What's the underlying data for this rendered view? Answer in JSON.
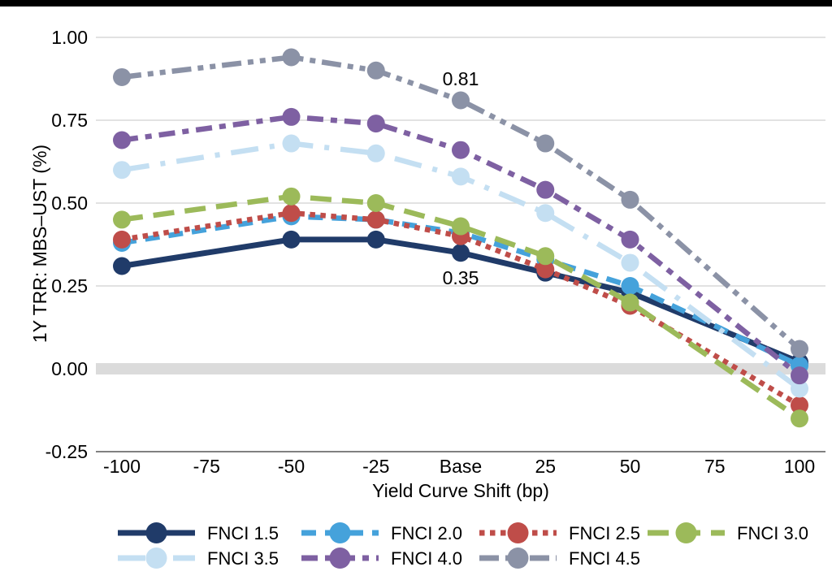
{
  "chart_data": {
    "type": "line",
    "title": "",
    "xlabel": "Yield Curve Shift (bp)",
    "ylabel": "1Y TRR: MBS–UST (%)",
    "x_tick_labels": [
      "-100",
      "-75",
      "-50",
      "-25",
      "Base",
      "25",
      "50",
      "75",
      "100"
    ],
    "y_tick_labels": [
      "1.00",
      "0.75",
      "0.50",
      "0.25",
      "0.00",
      "-0.25"
    ],
    "y_ticks": [
      1.0,
      0.75,
      0.5,
      0.25,
      0.0,
      -0.25
    ],
    "ylim": [
      -0.25,
      1.05
    ],
    "grid": true,
    "zero_band": true,
    "series_x": [
      "-100",
      "-50",
      "-25",
      "Base",
      "25",
      "50",
      "100"
    ],
    "series": [
      {
        "name": "FNCI 1.5",
        "color": "#203B69",
        "dash": "solid",
        "values": [
          0.31,
          0.39,
          0.39,
          0.35,
          0.29,
          0.23,
          0.02
        ]
      },
      {
        "name": "FNCI 2.0",
        "color": "#45A2DB",
        "dash": "18 11",
        "values": [
          0.38,
          0.46,
          0.45,
          0.41,
          0.33,
          0.25,
          0.01
        ]
      },
      {
        "name": "FNCI 2.5",
        "color": "#BF4D49",
        "dash": "6.5 6.5",
        "values": [
          0.39,
          0.47,
          0.45,
          0.4,
          0.3,
          0.19,
          -0.11
        ]
      },
      {
        "name": "FNCI 3.0",
        "color": "#9CBA5A",
        "dash": "26 13",
        "values": [
          0.45,
          0.52,
          0.5,
          0.43,
          0.34,
          0.2,
          -0.15
        ]
      },
      {
        "name": "FNCI 3.5",
        "color": "#C4DFF2",
        "dash": "34 14 6 14",
        "values": [
          0.6,
          0.68,
          0.65,
          0.58,
          0.47,
          0.32,
          -0.06
        ]
      },
      {
        "name": "FNCI 4.0",
        "color": "#7E60A2",
        "dash": "20 9 8 9",
        "values": [
          0.69,
          0.76,
          0.74,
          0.66,
          0.54,
          0.39,
          -0.02
        ]
      },
      {
        "name": "FNCI 4.5",
        "color": "#8B92A6",
        "dash": "24 8 7 8 7 8",
        "values": [
          0.88,
          0.94,
          0.9,
          0.81,
          0.68,
          0.51,
          0.06
        ]
      }
    ],
    "annotations": [
      {
        "text": "0.81",
        "x": "Base",
        "y": 0.875
      },
      {
        "text": "0.35",
        "x": "Base",
        "y": 0.275
      }
    ],
    "legend": {
      "position": "bottom",
      "rows": [
        [
          "FNCI 1.5",
          "FNCI 2.0",
          "FNCI 2.5",
          "FNCI 3.0"
        ],
        [
          "FNCI 3.5",
          "FNCI 4.0",
          "FNCI 4.5"
        ]
      ]
    },
    "colors": {
      "gridline": "#D9D9D9",
      "zero_band": "#DBDBDB",
      "axis_line": "#808080",
      "top_bar": "#000000",
      "text": "#000000"
    }
  }
}
